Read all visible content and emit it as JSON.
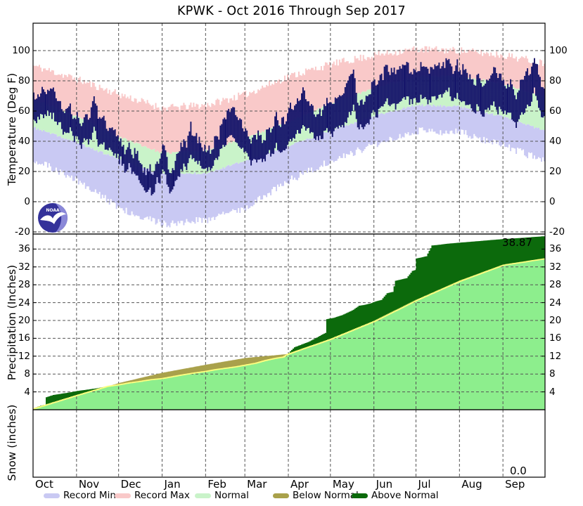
{
  "title": "KPWK - Oct 2016 Through Sep 2017",
  "panels": {
    "temperature": {
      "ylabel": "Temperature (Deg F)",
      "ticks": [
        -20,
        0,
        20,
        40,
        60,
        80,
        100
      ]
    },
    "precipitation": {
      "ylabel": "Precipitation (Inches)",
      "ticks": [
        4,
        8,
        12,
        16,
        20,
        24,
        28,
        32,
        36
      ],
      "season_total_label": "38.87"
    },
    "snow": {
      "ylabel": "Snow (inches)",
      "season_total_label": "0.0"
    }
  },
  "x_axis": {
    "month_labels": [
      "Oct",
      "Nov",
      "Dec",
      "Jan",
      "Feb",
      "Mar",
      "Apr",
      "May",
      "Jun",
      "Jul",
      "Aug",
      "Sep"
    ],
    "month_start_days": [
      0,
      31,
      61,
      92,
      123,
      151,
      182,
      212,
      243,
      273,
      304,
      335
    ],
    "days_total": 365
  },
  "legend": {
    "items": [
      {
        "label": "Record Min",
        "color": "#c9c9f3"
      },
      {
        "label": "Record Max",
        "color": "#f9c9c9"
      },
      {
        "label": "Normal",
        "color": "#c9f3c9"
      },
      {
        "label": "Below Normal",
        "color": "#a9a14b"
      },
      {
        "label": "Above Normal",
        "color": "#0c6a0c"
      }
    ]
  },
  "logo": {
    "name": "noaa-logo",
    "text": "NOAA"
  },
  "colors": {
    "record_min": "#c9c9f3",
    "record_max": "#f9c9c9",
    "normal_band": "#c9f3c9",
    "actual_temp_bars": "#16166b",
    "precip_area": "#8dee8d",
    "below_normal": "#a9a14b",
    "above_normal": "#0c6a0c",
    "normal_trace_line": "#ffff80",
    "grid": "#555555",
    "axis": "#000000",
    "logo_blue": "#34329a",
    "logo_light_blue": "#8a88d8"
  },
  "chart_data": [
    {
      "type": "band+bar",
      "name": "temperature_deg_f",
      "x_unit": "day_of_season_oct1",
      "ylim": [
        -21.5,
        118
      ],
      "anchor_days": [
        0,
        31,
        61,
        92,
        123,
        151,
        182,
        212,
        243,
        273,
        304,
        335,
        364
      ],
      "record_high": [
        90,
        81,
        71,
        62,
        64,
        71,
        83,
        91,
        97,
        101,
        100,
        97,
        92
      ],
      "normal_high": [
        68,
        56,
        43,
        32,
        34,
        42,
        53,
        65,
        75,
        83,
        83,
        78,
        69
      ],
      "normal_low": [
        49,
        39,
        28,
        18,
        19,
        27,
        37,
        47,
        57,
        64,
        63,
        56,
        47
      ],
      "record_low": [
        28,
        14,
        -4,
        -15,
        -12,
        -4,
        14,
        27,
        38,
        47,
        46,
        37,
        27
      ],
      "actual_high_low_anchors": [
        [
          0,
          68,
          52
        ],
        [
          7,
          74,
          57
        ],
        [
          14,
          76,
          58
        ],
        [
          21,
          64,
          48
        ],
        [
          28,
          58,
          44
        ],
        [
          38,
          50,
          36
        ],
        [
          44,
          66,
          46
        ],
        [
          52,
          48,
          34
        ],
        [
          61,
          42,
          28
        ],
        [
          68,
          34,
          22
        ],
        [
          75,
          28,
          14
        ],
        [
          84,
          18,
          4
        ],
        [
          88,
          30,
          16
        ],
        [
          92,
          36,
          20
        ],
        [
          97,
          20,
          6
        ],
        [
          104,
          34,
          18
        ],
        [
          112,
          48,
          30
        ],
        [
          119,
          38,
          24
        ],
        [
          126,
          36,
          22
        ],
        [
          133,
          48,
          32
        ],
        [
          140,
          64,
          44
        ],
        [
          147,
          56,
          38
        ],
        [
          151,
          48,
          33
        ],
        [
          158,
          44,
          28
        ],
        [
          165,
          40,
          26
        ],
        [
          172,
          56,
          36
        ],
        [
          179,
          54,
          35
        ],
        [
          186,
          62,
          42
        ],
        [
          193,
          70,
          48
        ],
        [
          200,
          58,
          42
        ],
        [
          207,
          64,
          45
        ],
        [
          214,
          68,
          48
        ],
        [
          221,
          74,
          52
        ],
        [
          228,
          88,
          64
        ],
        [
          232,
          64,
          48
        ],
        [
          238,
          70,
          52
        ],
        [
          245,
          80,
          60
        ],
        [
          252,
          88,
          66
        ],
        [
          259,
          84,
          62
        ],
        [
          266,
          92,
          70
        ],
        [
          273,
          86,
          66
        ],
        [
          280,
          90,
          68
        ],
        [
          287,
          84,
          64
        ],
        [
          294,
          92,
          72
        ],
        [
          301,
          86,
          66
        ],
        [
          308,
          84,
          64
        ],
        [
          315,
          78,
          60
        ],
        [
          322,
          80,
          60
        ],
        [
          329,
          84,
          62
        ],
        [
          336,
          78,
          58
        ],
        [
          343,
          74,
          54
        ],
        [
          350,
          80,
          58
        ],
        [
          356,
          93,
          70
        ],
        [
          360,
          88,
          66
        ],
        [
          364,
          78,
          56
        ]
      ],
      "record_noise_amp_f": 5,
      "normal_noise_amp_f": 1.6,
      "actual_noise_amp_f": 6
    },
    {
      "type": "area",
      "name": "precipitation_cumulative_inches",
      "ylim": [
        0,
        39.4
      ],
      "season_total": 38.87,
      "actual": [
        [
          0,
          0.3
        ],
        [
          5,
          0.9
        ],
        [
          8,
          1.1
        ],
        [
          9,
          2.8
        ],
        [
          14,
          3.3
        ],
        [
          20,
          3.6
        ],
        [
          26,
          3.9
        ],
        [
          31,
          4.2
        ],
        [
          38,
          4.5
        ],
        [
          45,
          4.8
        ],
        [
          52,
          5.2
        ],
        [
          61,
          5.6
        ],
        [
          68,
          6.0
        ],
        [
          75,
          6.3
        ],
        [
          83,
          6.7
        ],
        [
          92,
          7.0
        ],
        [
          99,
          7.4
        ],
        [
          106,
          7.8
        ],
        [
          114,
          8.2
        ],
        [
          123,
          8.6
        ],
        [
          130,
          9.0
        ],
        [
          137,
          9.3
        ],
        [
          144,
          9.6
        ],
        [
          151,
          10.0
        ],
        [
          158,
          10.4
        ],
        [
          165,
          11.0
        ],
        [
          172,
          11.5
        ],
        [
          178,
          11.8
        ],
        [
          181,
          12.4
        ],
        [
          183,
          13.1
        ],
        [
          186,
          14.0
        ],
        [
          191,
          14.6
        ],
        [
          196,
          15.2
        ],
        [
          201,
          16.0
        ],
        [
          206,
          16.9
        ],
        [
          208,
          17.2
        ],
        [
          209,
          20.3
        ],
        [
          214,
          20.6
        ],
        [
          220,
          21.2
        ],
        [
          224,
          21.8
        ],
        [
          228,
          22.4
        ],
        [
          232,
          23.3
        ],
        [
          236,
          23.5
        ],
        [
          240,
          23.8
        ],
        [
          244,
          24.3
        ],
        [
          248,
          24.6
        ],
        [
          252,
          26.1
        ],
        [
          256,
          26.4
        ],
        [
          258,
          28.9
        ],
        [
          262,
          29.2
        ],
        [
          266,
          29.5
        ],
        [
          270,
          31.1
        ],
        [
          272,
          31.3
        ],
        [
          273,
          33.9
        ],
        [
          276,
          34.1
        ],
        [
          280,
          34.4
        ],
        [
          284,
          36.8
        ],
        [
          290,
          37.0
        ],
        [
          295,
          37.2
        ],
        [
          302,
          37.4
        ],
        [
          310,
          37.6
        ],
        [
          318,
          37.8
        ],
        [
          325,
          38.0
        ],
        [
          333,
          38.2
        ],
        [
          340,
          38.35
        ],
        [
          348,
          38.5
        ],
        [
          356,
          38.7
        ],
        [
          364,
          38.87
        ]
      ],
      "normal": [
        [
          0,
          0.2
        ],
        [
          31,
          3.2
        ],
        [
          61,
          6.0
        ],
        [
          92,
          8.3
        ],
        [
          123,
          10.1
        ],
        [
          151,
          11.6
        ],
        [
          182,
          12.5
        ],
        [
          212,
          15.8
        ],
        [
          243,
          19.8
        ],
        [
          273,
          24.5
        ],
        [
          304,
          28.8
        ],
        [
          335,
          32.4
        ],
        [
          364,
          33.8
        ]
      ]
    },
    {
      "type": "area",
      "name": "snow_cumulative_inches",
      "season_total": 0.0,
      "actual": [
        [
          0,
          0
        ],
        [
          364,
          0
        ]
      ]
    }
  ]
}
